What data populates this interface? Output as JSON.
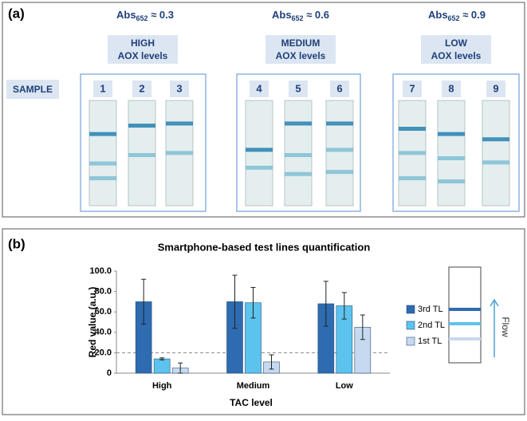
{
  "panel_a": {
    "label": "(a)",
    "abs_labels": [
      {
        "prefix": "Abs",
        "sub": "652",
        "suffix": " ≈ 0.3"
      },
      {
        "prefix": "Abs",
        "sub": "652",
        "suffix": " ≈ 0.6"
      },
      {
        "prefix": "Abs",
        "sub": "652",
        "suffix": " ≈ 0.9"
      }
    ],
    "levels": [
      {
        "line1": "HIGH",
        "line2": "AOX levels"
      },
      {
        "line1": "MEDIUM",
        "line2": "AOX levels"
      },
      {
        "line1": "LOW",
        "line2": "AOX levels"
      }
    ],
    "sample_label": "SAMPLE",
    "samples": [
      "1",
      "2",
      "3",
      "4",
      "5",
      "6",
      "7",
      "8",
      "9"
    ]
  },
  "chart_data": {
    "type": "bar",
    "panel_label": "(b)",
    "title": "Smartphone-based test lines quantification",
    "x_label": "TAC level",
    "y_label": "Red value (a.u.)",
    "categories": [
      "High",
      "Medium",
      "Low"
    ],
    "series": [
      {
        "name": "3rd TL",
        "color": "#2e6bb0",
        "values": [
          70,
          70,
          68
        ],
        "errors": [
          22,
          26,
          22
        ]
      },
      {
        "name": "2nd TL",
        "color": "#5cc3ee",
        "values": [
          14,
          69,
          66
        ],
        "errors": [
          1,
          15,
          13
        ]
      },
      {
        "name": "1st TL",
        "color": "#c6d9f0",
        "values": [
          5,
          11,
          45
        ],
        "errors": [
          5,
          7,
          12
        ]
      }
    ],
    "ylim": [
      0,
      100
    ],
    "yticks": [
      0,
      {
        "value": 20,
        "label": "20.0"
      },
      {
        "value": 40,
        "label": "40.0"
      },
      {
        "value": 60,
        "label": "60.0"
      },
      {
        "value": 80,
        "label": "80.0"
      },
      {
        "value": 100,
        "label": "100.0"
      }
    ],
    "reference_line": 20,
    "flow_label": "Flow"
  }
}
